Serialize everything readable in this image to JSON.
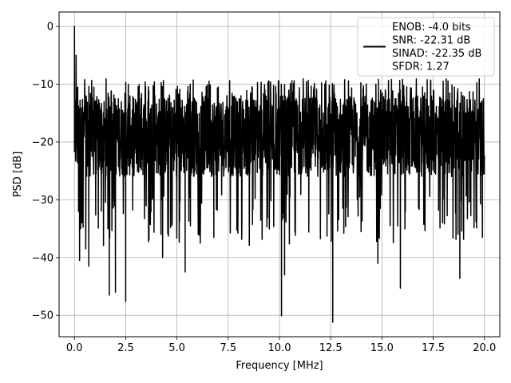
{
  "chart_data": {
    "type": "line",
    "title": "",
    "xlabel": "Frequency [MHz]",
    "ylabel": "PSD [dB]",
    "xlim": [
      -0.75,
      20.75
    ],
    "ylim": [
      -53.7,
      2.5
    ],
    "xticks": [
      0.0,
      2.5,
      5.0,
      7.5,
      10.0,
      12.5,
      15.0,
      17.5,
      20.0
    ],
    "xtick_labels": [
      "0.0",
      "2.5",
      "5.0",
      "7.5",
      "10.0",
      "12.5",
      "15.0",
      "17.5",
      "20.0"
    ],
    "yticks": [
      0,
      -10,
      -20,
      -30,
      -40,
      -50
    ],
    "ytick_labels": [
      "0",
      "−10",
      "−20",
      "−30",
      "−40",
      "−50"
    ],
    "grid": true,
    "legend_position": "top-right",
    "line_color": "#000000",
    "series": [
      {
        "legend_lines": [
          "ENOB: -4.0 bits",
          "SNR: -22.31 dB",
          "SINAD: -22.35 dB",
          "SFDR: 1.27"
        ],
        "x_range": [
          0.0,
          20.0
        ],
        "points": 2048,
        "typical_band_db": [
          -26.0,
          -12.0
        ],
        "peak_points": [
          {
            "x": 0.0,
            "y": 0.0
          },
          {
            "x": 0.04,
            "y": -13.0
          },
          {
            "x": 0.08,
            "y": -5.0
          },
          {
            "x": 0.12,
            "y": -17.5
          },
          {
            "x": 0.16,
            "y": -10.5
          },
          {
            "x": 0.2,
            "y": -32.0
          },
          {
            "x": 0.25,
            "y": -40.5
          },
          {
            "x": 0.3,
            "y": -35.0
          },
          {
            "x": 0.55,
            "y": -38.5
          },
          {
            "x": 0.7,
            "y": -41.5
          },
          {
            "x": 1.7,
            "y": -46.5
          },
          {
            "x": 2.0,
            "y": -46.0
          },
          {
            "x": 2.5,
            "y": -47.6
          },
          {
            "x": 4.3,
            "y": -40.0
          },
          {
            "x": 5.4,
            "y": -42.5
          },
          {
            "x": 6.8,
            "y": -36.5
          },
          {
            "x": 10.1,
            "y": -50.1
          },
          {
            "x": 10.25,
            "y": -43.0
          },
          {
            "x": 12.6,
            "y": -51.2
          },
          {
            "x": 14.8,
            "y": -41.0
          },
          {
            "x": 15.9,
            "y": -45.3
          },
          {
            "x": 18.8,
            "y": -43.6
          },
          {
            "x": 19.9,
            "y": -36.5
          }
        ]
      }
    ]
  }
}
